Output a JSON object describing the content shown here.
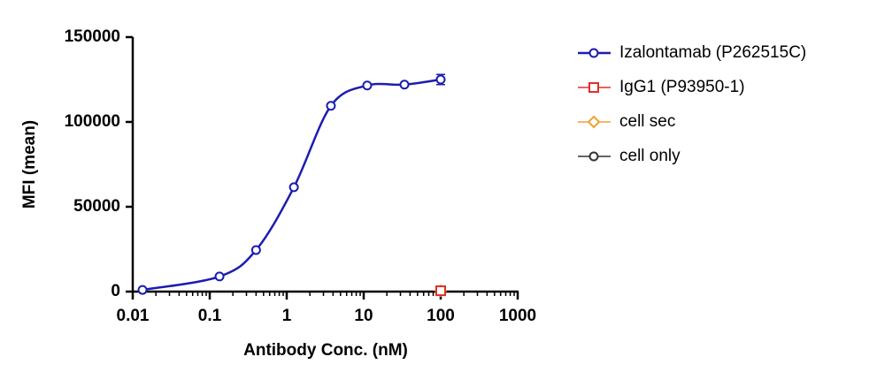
{
  "chart_data": {
    "type": "scatter",
    "xlabel": "Antibody Conc. (nM)",
    "ylabel": "MFI (mean)",
    "xscale": "log",
    "xlim": [
      0.01,
      1000
    ],
    "xticks": [
      0.01,
      0.1,
      1,
      10,
      100,
      1000
    ],
    "ylim": [
      0,
      150000
    ],
    "yticks": [
      0,
      50000,
      100000,
      150000
    ],
    "legend": "right",
    "series": [
      {
        "name": "Izalontamab (P262515C)",
        "color": "#1c1cb0",
        "marker": "circle",
        "fit": true,
        "x": [
          0.0134,
          0.134,
          0.4,
          1.24,
          3.75,
          11.1,
          33.8,
          100
        ],
        "values": [
          1000,
          8900,
          24500,
          61500,
          109500,
          121500,
          122000,
          125000
        ],
        "errors": [
          0,
          0,
          0,
          0,
          0,
          0,
          0,
          3000
        ]
      },
      {
        "name": "IgG1 (P93950-1)",
        "color": "#e0302a",
        "marker": "square",
        "x": [
          100
        ],
        "values": [
          500
        ]
      },
      {
        "name": "cell sec",
        "color": "#f0a030",
        "marker": "diamond",
        "x": [
          100
        ],
        "values": [
          500
        ]
      },
      {
        "name": "cell only",
        "color": "#333333",
        "marker": "circle",
        "x": [
          100
        ],
        "values": [
          500
        ]
      }
    ]
  }
}
